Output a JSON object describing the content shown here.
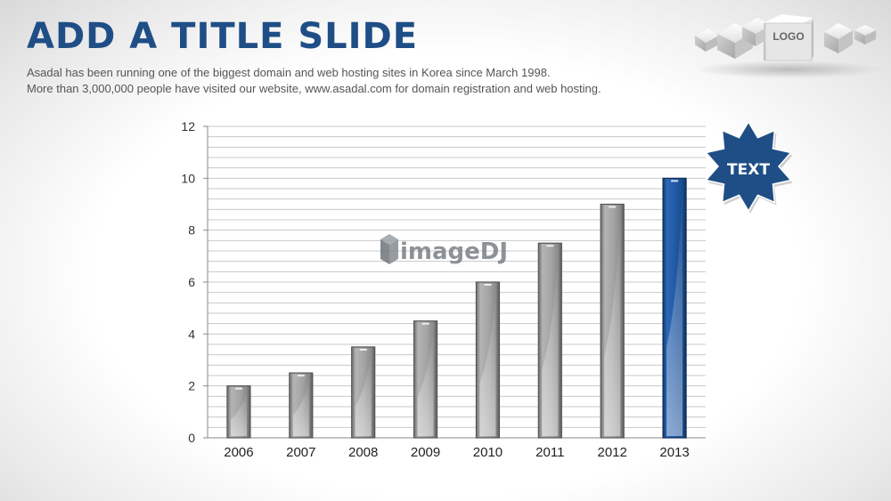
{
  "slide": {
    "title": "ADD A TITLE SLIDE",
    "subtitle_line1": "Asadal has been running one of the biggest domain and web hosting sites in Korea since March 1998.",
    "subtitle_line2": "More than 3,000,000 people have visited our website,  www.asadal.com for domain registration and web hosting."
  },
  "logo": {
    "text": "LOGO",
    "icon": "cube-logo-icon"
  },
  "badge": {
    "text": "TEXT",
    "color": "#1f4e86"
  },
  "watermark": {
    "text": "imageDJ"
  },
  "colors": {
    "title": "#1f4e86",
    "bar_default": "#9a9a9a",
    "bar_highlight": "#1f56a0",
    "grid": "#c8c8c8"
  },
  "chart_data": {
    "type": "bar",
    "categories": [
      "2006",
      "2007",
      "2008",
      "2009",
      "2010",
      "2011",
      "2012",
      "2013"
    ],
    "values": [
      2,
      2.5,
      3.5,
      4.5,
      6,
      7.5,
      9,
      10
    ],
    "highlight_index": 7,
    "ylim": [
      0,
      12
    ],
    "yticks": [
      "0",
      "2",
      "4",
      "6",
      "8",
      "10",
      "12"
    ],
    "minor_grid_step": 0.4,
    "xlabel": "",
    "ylabel": "",
    "grid": true,
    "legend": "none"
  }
}
